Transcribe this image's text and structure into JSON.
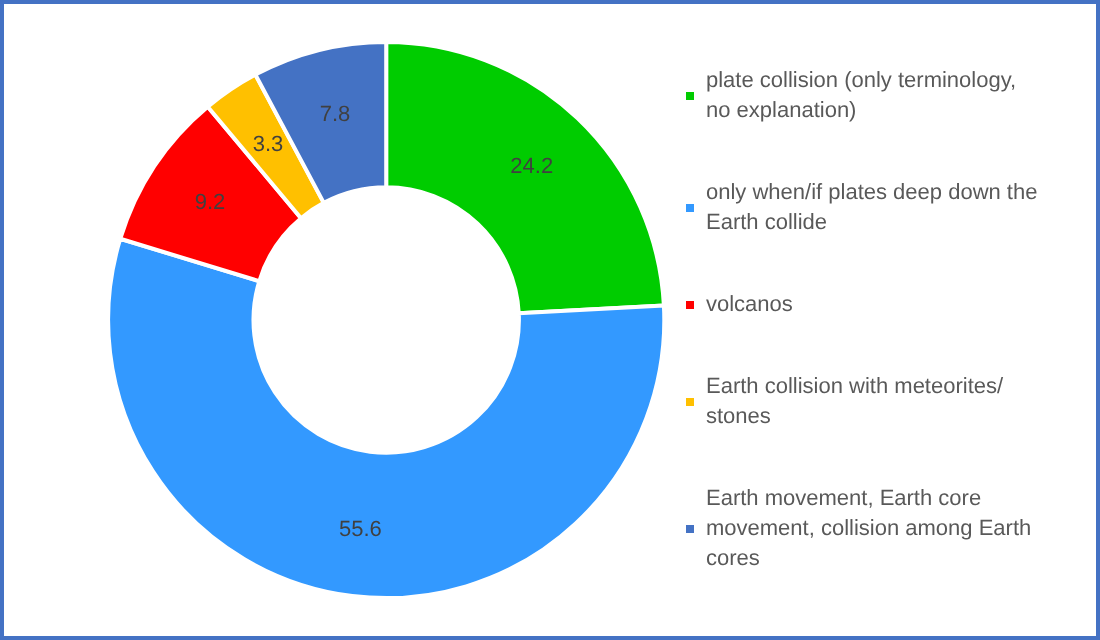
{
  "chart_data": {
    "type": "donut",
    "categories": [
      "plate collision (only terminology, no explanation)",
      "only when/if plates deep down the Earth collide",
      "volcanos",
      "Earth collision with meteorites/stones",
      "Earth movement, Earth core movement, collision among Earth cores"
    ],
    "values": [
      24.2,
      55.6,
      9.2,
      3.3,
      7.8
    ],
    "colors": [
      "#00cc00",
      "#3399ff",
      "#ff0000",
      "#ffc000",
      "#4472c4"
    ],
    "data_labels": true,
    "legend": "right"
  }
}
